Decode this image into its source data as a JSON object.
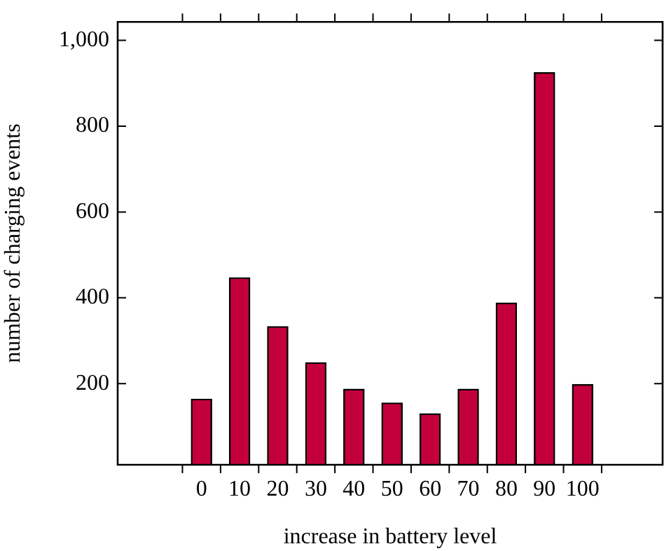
{
  "chart_data": {
    "type": "bar",
    "xlabel": "increase in battery level",
    "ylabel": "number of charging events",
    "x": [
      0,
      10,
      20,
      30,
      40,
      50,
      60,
      70,
      80,
      90,
      100
    ],
    "values": [
      164,
      447,
      333,
      249,
      187,
      155,
      130,
      187,
      388,
      925,
      198
    ],
    "color": "#c4003c",
    "xlim": [
      -22,
      121
    ],
    "xticks": [
      {
        "value": -5,
        "label": null
      },
      0,
      {
        "value": 5,
        "label": null
      },
      10,
      {
        "value": 15,
        "label": null
      },
      20,
      {
        "value": 25,
        "label": null
      },
      30,
      {
        "value": 35,
        "label": null
      },
      40,
      {
        "value": 45,
        "label": null
      },
      50,
      {
        "value": 55,
        "label": null
      },
      60,
      {
        "value": 65,
        "label": null
      },
      70,
      {
        "value": 75,
        "label": null
      },
      80,
      {
        "value": 85,
        "label": null
      },
      90,
      {
        "value": 95,
        "label": null
      },
      100,
      {
        "value": 105,
        "label": null
      }
    ],
    "ylim": [
      11,
      1043
    ],
    "yticks": [
      200,
      400,
      600,
      800,
      {
        "value": 1000,
        "label": "1,000"
      }
    ],
    "grid": false,
    "legend": false
  }
}
